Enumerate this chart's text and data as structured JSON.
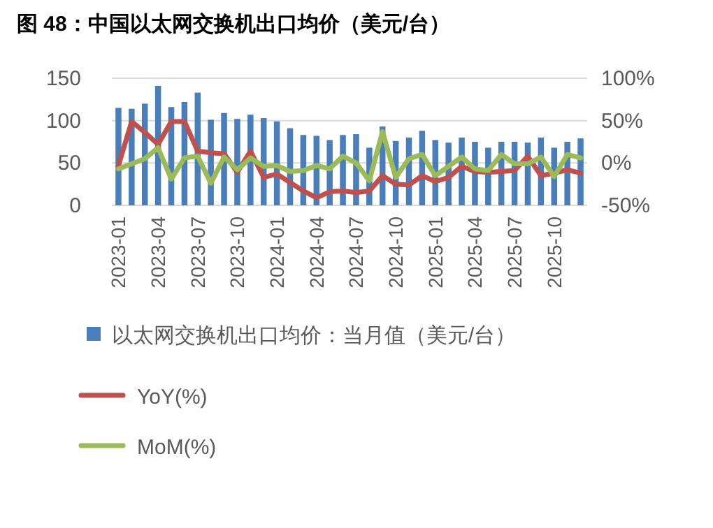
{
  "chart_data": {
    "type": "bar",
    "title": "图 48：中国以太网交换机出口均价（美元/台）",
    "categories": [
      "2023-01",
      null,
      null,
      "2023-04",
      null,
      null,
      "2023-07",
      null,
      null,
      "2023-10",
      null,
      null,
      "2024-01",
      null,
      null,
      "2024-04",
      null,
      null,
      "2024-07",
      null,
      null,
      "2024-10",
      null,
      null,
      "2025-01",
      null,
      null,
      "2025-04",
      null,
      null,
      "2025-07",
      null,
      null,
      "2025-10",
      null,
      null
    ],
    "series": [
      {
        "name": "以太网交换机出口均价：当月值（美元/台）",
        "color": "#4a7ebb",
        "values": [
          115,
          114,
          120,
          141,
          116,
          122,
          133,
          101,
          109,
          102,
          107,
          103,
          99,
          91,
          83,
          82,
          77,
          83,
          84,
          68,
          93,
          76,
          80,
          88,
          77,
          74,
          80,
          75,
          68,
          75,
          75,
          74,
          80,
          68,
          75,
          79
        ]
      },
      {
        "name": "YoY(%)",
        "type": "line",
        "axis": "y2",
        "color": "#c0504d",
        "values": [
          -3,
          49,
          36,
          22,
          49,
          49,
          14,
          12,
          11,
          -11,
          14,
          -17,
          -13,
          -23,
          -33,
          -41,
          -34,
          -33,
          -35,
          -33,
          -15,
          -25,
          -26,
          -15,
          -22,
          -17,
          -4,
          -10,
          -11,
          -10,
          -9,
          8,
          -15,
          -12,
          -8,
          -12
        ]
      },
      {
        "name": "MoM(%)",
        "type": "line",
        "axis": "y2",
        "color": "#9bbb59",
        "values": [
          -7,
          -1,
          5,
          18,
          -19,
          6,
          8,
          -24,
          7,
          -8,
          6,
          -4,
          -3,
          -10,
          -9,
          -3,
          -7,
          8,
          0,
          -21,
          37,
          -17,
          5,
          10,
          -15,
          -4,
          7,
          -7,
          -9,
          10,
          -1,
          -1,
          7,
          -16,
          10,
          6
        ]
      }
    ],
    "ylim": [
      0,
      150
    ],
    "yticks": [
      0,
      50,
      100,
      150
    ],
    "y2lim": [
      -50,
      100
    ],
    "y2ticks": [
      {
        "value": -50,
        "label": "-50%"
      },
      {
        "value": 0,
        "label": "0%"
      },
      {
        "value": 50,
        "label": "50%"
      },
      {
        "value": 100,
        "label": "100%"
      }
    ],
    "grid": "y",
    "legend": "bottom",
    "marker": "none",
    "line_style": "solid"
  }
}
